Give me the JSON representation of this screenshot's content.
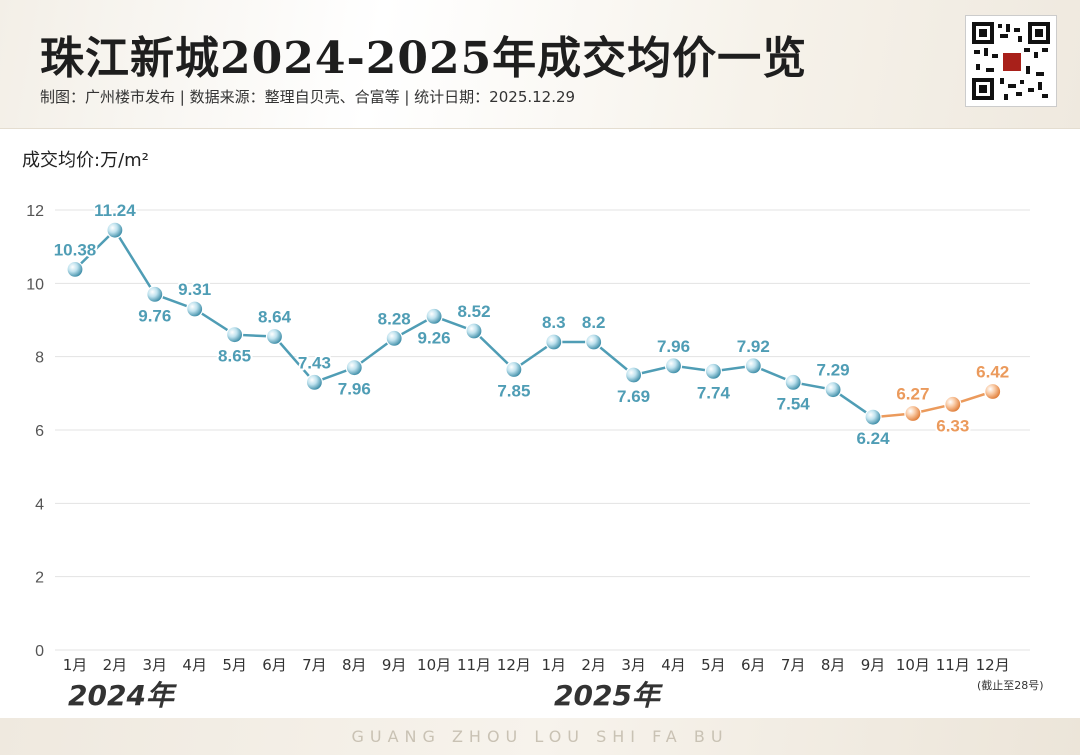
{
  "header": {
    "title": "珠江新城2024-2025年成交均价一览",
    "subtitle": "制图：广州楼市发布  |  数据来源：整理自贝壳、合富等  |  统计日期：2025.12.29",
    "qr_icon": "qr-code-icon"
  },
  "footer": {
    "text": "GUANG ZHOU LOU SHI FA BU"
  },
  "chart_data": {
    "type": "line",
    "ylabel": "成交均价:万/m²",
    "ylim": [
      0,
      12
    ],
    "yticks": [
      0,
      2,
      4,
      6,
      8,
      10,
      12
    ],
    "grid": true,
    "categories": [
      "1月",
      "2月",
      "3月",
      "4月",
      "5月",
      "6月",
      "7月",
      "8月",
      "9月",
      "10月",
      "11月",
      "12月",
      "1月",
      "2月",
      "3月",
      "4月",
      "5月",
      "6月",
      "7月",
      "8月",
      "9月",
      "10月",
      "11月",
      "12月"
    ],
    "year_labels": [
      "2024年",
      "2025年"
    ],
    "last_category_note": "(截止至28号)",
    "values": [
      10.38,
      11.24,
      9.76,
      9.31,
      8.65,
      8.64,
      7.43,
      7.96,
      8.28,
      9.26,
      8.52,
      7.85,
      8.3,
      8.2,
      7.69,
      7.96,
      7.74,
      7.92,
      7.54,
      7.29,
      6.24,
      6.27,
      6.33,
      6.42
    ],
    "point_y": [
      10.38,
      11.45,
      9.7,
      9.3,
      8.6,
      8.55,
      7.3,
      7.7,
      8.5,
      9.1,
      8.7,
      7.65,
      8.4,
      8.4,
      7.5,
      7.75,
      7.6,
      7.75,
      7.3,
      7.1,
      6.35,
      6.45,
      6.7,
      7.05
    ],
    "label_pos": [
      "above",
      "above",
      "below",
      "above",
      "below",
      "above",
      "above",
      "below",
      "above",
      "below",
      "above",
      "below",
      "above",
      "above",
      "below",
      "above",
      "below",
      "above",
      "below",
      "above",
      "below",
      "above",
      "below",
      "above"
    ],
    "highlight_from_index": 20,
    "colors": {
      "main": "#4f9db5",
      "highlight": "#eb9a5c",
      "grid": "#e3e3e3",
      "axis_text": "#555555"
    }
  }
}
